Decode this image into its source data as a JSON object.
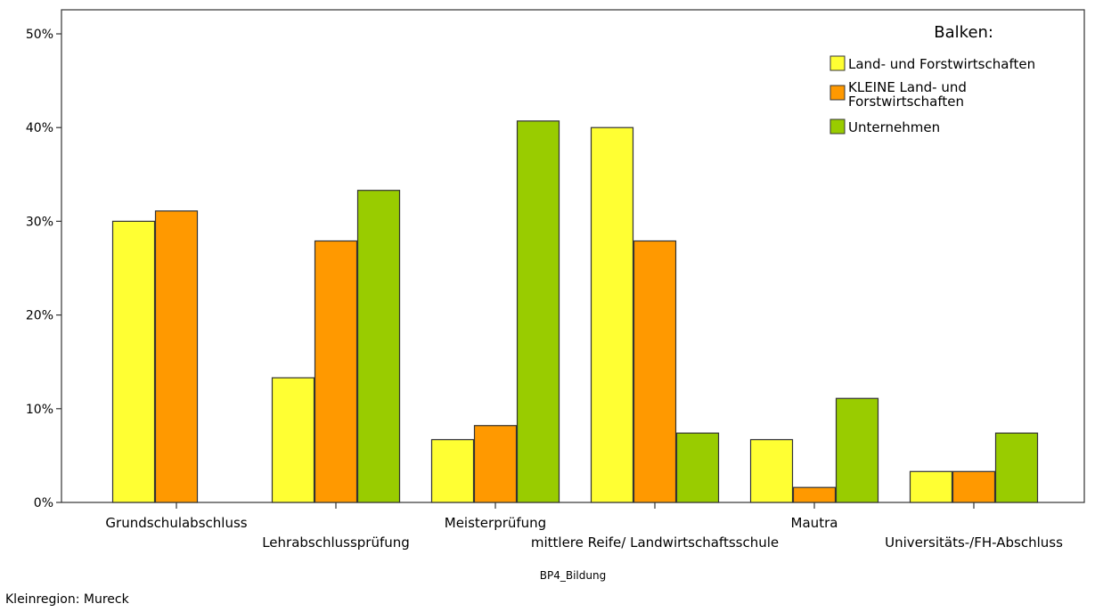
{
  "chart_data": {
    "type": "bar",
    "xlabel": "BP4_Bildung",
    "ylabel": "",
    "ylim": [
      0,
      50
    ],
    "y_ticks": [
      0,
      10,
      20,
      30,
      40,
      50
    ],
    "y_tick_labels": [
      "0%",
      "10%",
      "20%",
      "30%",
      "40%",
      "50%"
    ],
    "categories": [
      "Grundschulabschluss",
      "Lehrabschlussprüfung",
      "Meisterprüfung",
      "mittlere Reife/ Landwirtschaftsschule",
      "Mautra",
      "Universitäts-/FH-Abschluss"
    ],
    "series": [
      {
        "name": "Land- und Forstwirtschaften",
        "color": "#ffff33",
        "values": [
          30.0,
          13.3,
          6.7,
          40.0,
          6.7,
          3.3
        ]
      },
      {
        "name": "KLEINE Land- und Forstwirtschaften",
        "color": "#ff9900",
        "values": [
          31.1,
          27.9,
          8.2,
          27.9,
          1.6,
          3.3
        ]
      },
      {
        "name": "Unternehmen",
        "color": "#99cc00",
        "values": [
          0.0,
          33.3,
          40.7,
          7.4,
          11.1,
          7.4
        ]
      }
    ],
    "legend": {
      "title": "Balken:",
      "position": "top-right",
      "labels": [
        [
          "Land- und Forstwirtschaften"
        ],
        [
          "KLEINE Land- und",
          "Forstwirtschaften"
        ],
        [
          "Unternehmen"
        ]
      ]
    },
    "grid": false
  },
  "footer": {
    "note": "Kleinregion: Mureck"
  }
}
